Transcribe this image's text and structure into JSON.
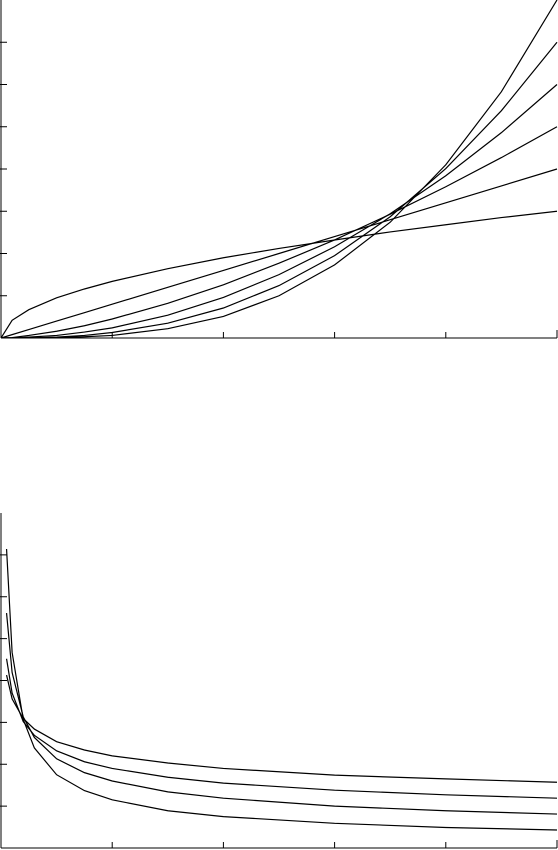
{
  "chart_data": [
    {
      "type": "line",
      "x": [
        0,
        0.1,
        0.25,
        0.5,
        0.75,
        1,
        1.5,
        2,
        2.5,
        3,
        3.5,
        4,
        4.5,
        5
      ],
      "series": [
        {
          "color": "#000000",
          "values": [
            0,
            0.42,
            0.67,
            0.95,
            1.16,
            1.34,
            1.64,
            1.9,
            2.12,
            2.32,
            2.51,
            2.68,
            2.85,
            3
          ]
        },
        {
          "color": "#000000",
          "values": [
            0,
            0.08,
            0.2,
            0.4,
            0.6,
            0.8,
            1.2,
            1.6,
            2,
            2.4,
            2.8,
            3.2,
            3.6,
            4
          ]
        },
        {
          "color": "#000000",
          "values": [
            0,
            0.01,
            0.06,
            0.16,
            0.29,
            0.45,
            0.82,
            1.26,
            1.77,
            2.32,
            2.93,
            3.58,
            4.27,
            5
          ]
        },
        {
          "color": "#000000",
          "values": [
            0,
            0,
            0.02,
            0.06,
            0.14,
            0.24,
            0.54,
            0.96,
            1.5,
            2.16,
            2.94,
            3.84,
            4.86,
            6
          ]
        },
        {
          "color": "#000000",
          "values": [
            0,
            0,
            0,
            0.02,
            0.06,
            0.13,
            0.35,
            0.71,
            1.24,
            1.95,
            2.87,
            4.01,
            5.38,
            7
          ]
        },
        {
          "color": "#000000",
          "values": [
            0,
            0,
            0,
            0.01,
            0.03,
            0.06,
            0.22,
            0.51,
            1,
            1.73,
            2.74,
            4.1,
            5.83,
            8
          ]
        }
      ],
      "xlim": [
        0,
        5
      ],
      "xticks": [
        1,
        2,
        3,
        4
      ],
      "ylim": [
        0,
        8
      ],
      "yticks": [
        1,
        2,
        3,
        4,
        5,
        6,
        7
      ]
    },
    {
      "type": "line",
      "x": [
        0.05,
        0.1,
        0.2,
        0.3,
        0.5,
        0.75,
        1,
        1.5,
        2,
        3,
        4,
        5
      ],
      "series": [
        {
          "color": "#000000",
          "values": [
            4.13,
            3.56,
            3.09,
            2.84,
            2.54,
            2.34,
            2.2,
            2.03,
            1.9,
            1.74,
            1.65,
            1.57
          ]
        },
        {
          "color": "#000000",
          "values": [
            4.52,
            3.7,
            3.02,
            2.69,
            2.32,
            2.06,
            1.9,
            1.69,
            1.55,
            1.38,
            1.27,
            1.19
          ]
        },
        {
          "color": "#000000",
          "values": [
            5.61,
            4.19,
            3.13,
            2.64,
            2.13,
            1.8,
            1.6,
            1.34,
            1.19,
            1.0,
            0.89,
            0.81
          ]
        },
        {
          "color": "#000000",
          "values": [
            7.14,
            4.67,
            3.07,
            2.39,
            1.75,
            1.37,
            1.15,
            0.89,
            0.75,
            0.59,
            0.49,
            0.43
          ]
        }
      ],
      "xlim": [
        0,
        5
      ],
      "xticks": [
        1,
        2,
        3,
        4
      ],
      "ylim": [
        0,
        8
      ],
      "yticks": [
        1,
        2,
        3,
        4,
        5,
        6,
        7
      ]
    }
  ]
}
